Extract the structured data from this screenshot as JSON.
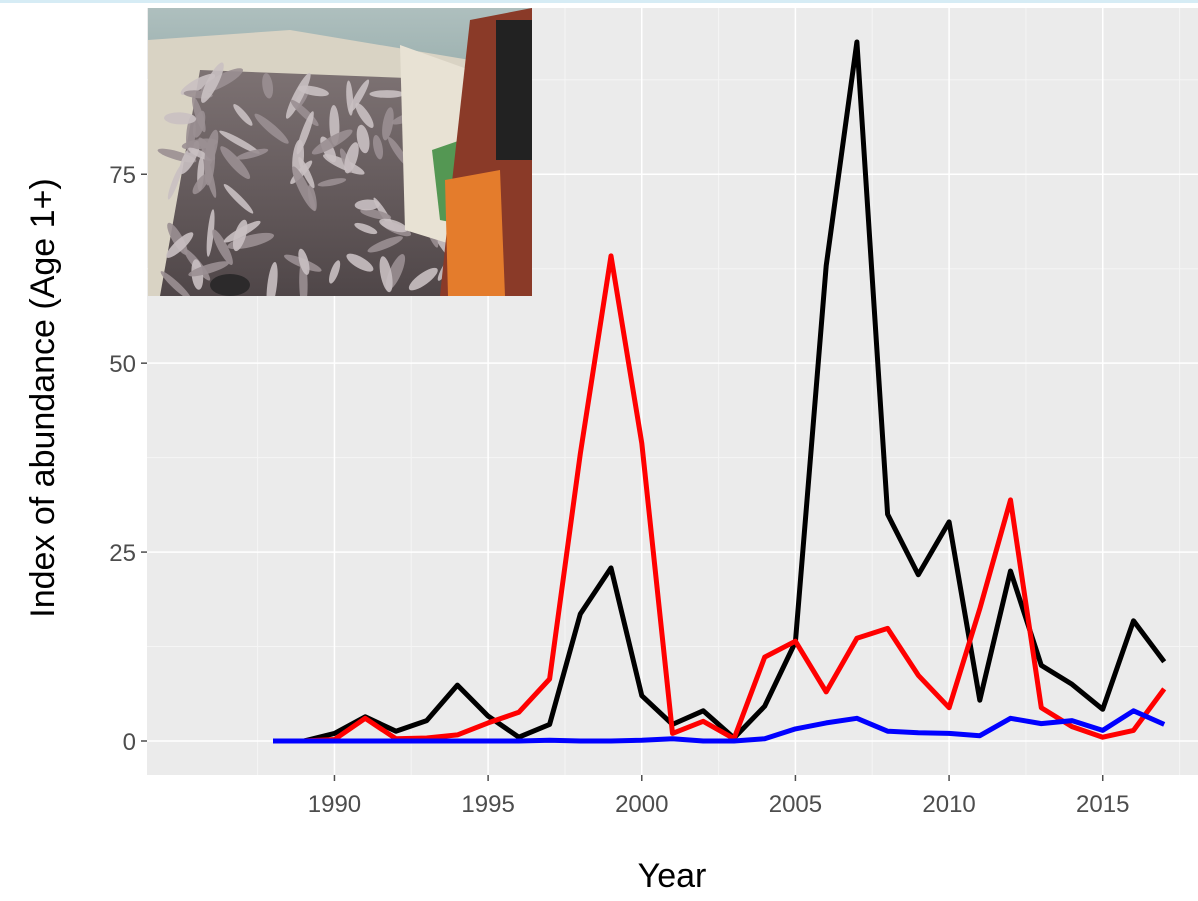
{
  "chart_data": {
    "type": "line",
    "title": "",
    "xlabel": "Year",
    "ylabel": "Index of abundance (Age 1+)",
    "xlim": [
      1983.9,
      2018.1
    ],
    "ylim": [
      -4.5,
      97
    ],
    "x_ticks": [
      1990,
      1995,
      2000,
      2005,
      2010,
      2015
    ],
    "y_ticks": [
      0,
      25,
      50,
      75
    ],
    "grid": true,
    "legend": "none",
    "x": [
      1988,
      1989,
      1990,
      1991,
      1992,
      1993,
      1994,
      1995,
      1996,
      1997,
      1998,
      1999,
      2000,
      2001,
      2002,
      2003,
      2004,
      2005,
      2006,
      2007,
      2008,
      2009,
      2010,
      2011,
      2012,
      2013,
      2014,
      2015,
      2016,
      2017
    ],
    "series": [
      {
        "color": "#000000",
        "values": [
          0,
          0,
          1,
          3.2,
          1.3,
          2.7,
          7.4,
          3.3,
          0.5,
          2.2,
          16.8,
          22.9,
          6.0,
          2.2,
          4.0,
          0.4,
          4.6,
          13.1,
          62.9,
          92.5,
          30.0,
          22.0,
          29.0,
          5.4,
          22.5,
          10.0,
          7.5,
          4.2,
          15.9,
          10.5
        ]
      },
      {
        "color": "#ff0000",
        "values": [
          0,
          0,
          0.2,
          3.0,
          0.3,
          0.4,
          0.8,
          2.4,
          3.8,
          8.2,
          38.0,
          64.2,
          39.4,
          1.0,
          2.6,
          0.3,
          11.1,
          13.2,
          6.5,
          13.6,
          14.9,
          8.7,
          4.4,
          17.5,
          31.9,
          4.4,
          1.9,
          0.5,
          1.4,
          6.9
        ]
      },
      {
        "color": "#0000ff",
        "values": [
          0,
          0,
          0,
          0,
          0,
          0,
          0,
          0,
          0,
          0.1,
          0,
          0,
          0.1,
          0.3,
          0,
          0,
          0.3,
          1.6,
          2.4,
          3.0,
          1.3,
          1.1,
          1.0,
          0.7,
          3.0,
          2.3,
          2.7,
          1.4,
          4.0,
          2.2
        ]
      }
    ]
  },
  "inset_photo": {
    "subject": "Boat deck filled with freshly caught fish, fisherman in orange oilskins",
    "colors": {
      "water": "#6e8e8c",
      "hull": "#d8d2c2",
      "fish": "#9a8f92",
      "oilskin": "#e07a2a",
      "net": "#3a8a3c"
    }
  },
  "style": {
    "panel_bg": "#ebebeb",
    "grid_major": "#ffffff",
    "grid_minor": "#f5f5f5",
    "tick_color": "#4d4d4d"
  }
}
